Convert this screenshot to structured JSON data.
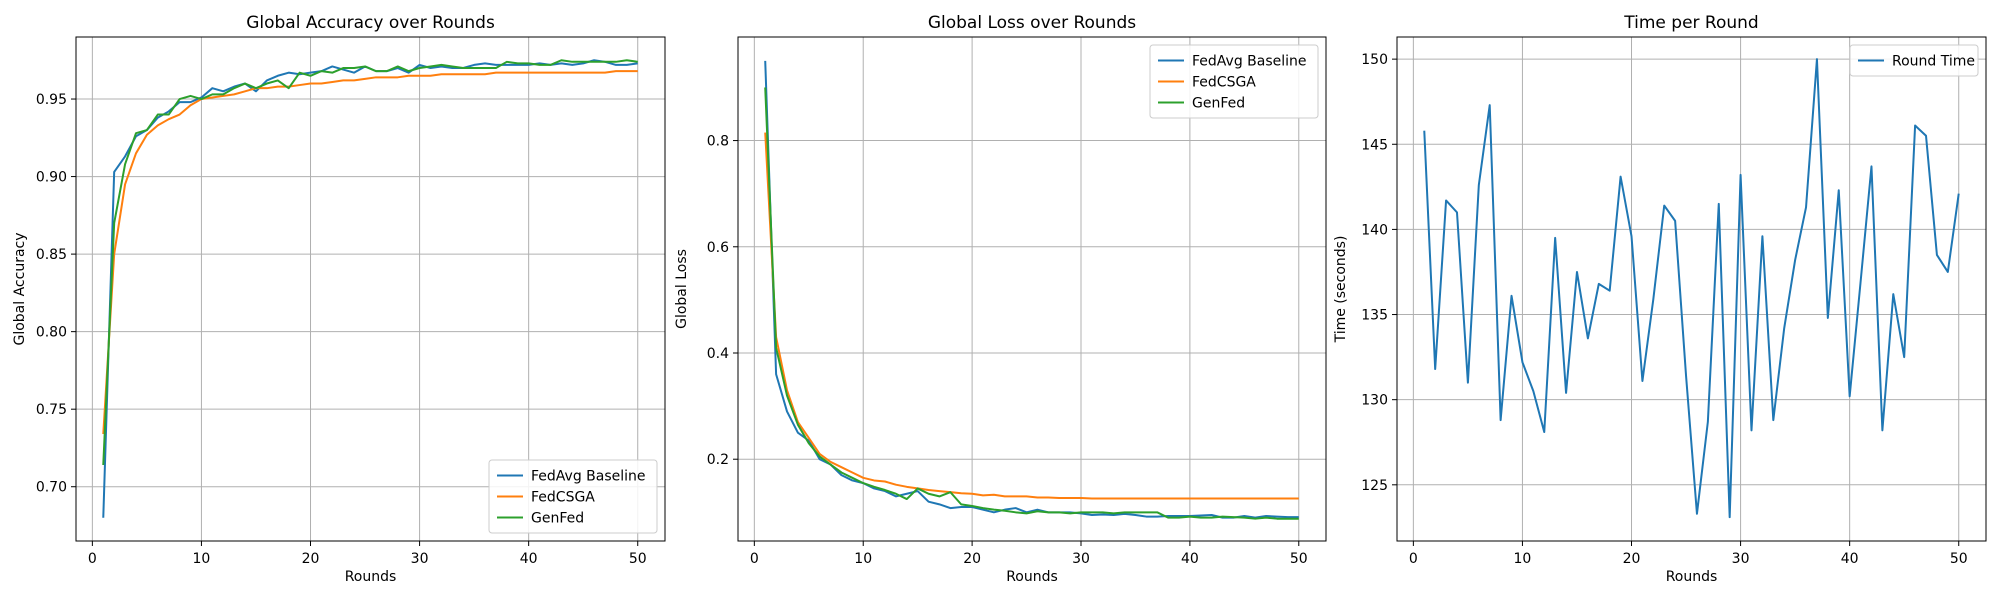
{
  "chart_data": [
    {
      "type": "line",
      "title": "Global Accuracy over Rounds",
      "xlabel": "Rounds",
      "ylabel": "Global Accuracy",
      "xlim": [
        -1.5,
        52.5
      ],
      "ylim": [
        0.665,
        0.99
      ],
      "xticks": [
        0,
        10,
        20,
        30,
        40,
        50
      ],
      "xtick_labels": [
        "0",
        "10",
        "20",
        "30",
        "40",
        "50"
      ],
      "yticks": [
        0.7,
        0.75,
        0.8,
        0.85,
        0.9,
        0.95
      ],
      "ytick_labels": [
        "0.70",
        "0.75",
        "0.80",
        "0.85",
        "0.90",
        "0.95"
      ],
      "grid": true,
      "legend_position": "lower-right",
      "x": [
        1,
        2,
        3,
        4,
        5,
        6,
        7,
        8,
        9,
        10,
        11,
        12,
        13,
        14,
        15,
        16,
        17,
        18,
        19,
        20,
        21,
        22,
        23,
        24,
        25,
        26,
        27,
        28,
        29,
        30,
        31,
        32,
        33,
        34,
        35,
        36,
        37,
        38,
        39,
        40,
        41,
        42,
        43,
        44,
        45,
        46,
        47,
        48,
        49,
        50
      ],
      "series": [
        {
          "name": "FedAvg Baseline",
          "color": "#1f77b4",
          "values": [
            0.68,
            0.903,
            0.913,
            0.926,
            0.93,
            0.938,
            0.942,
            0.948,
            0.948,
            0.951,
            0.957,
            0.955,
            0.958,
            0.96,
            0.955,
            0.962,
            0.965,
            0.967,
            0.966,
            0.967,
            0.968,
            0.971,
            0.969,
            0.967,
            0.971,
            0.968,
            0.968,
            0.97,
            0.967,
            0.972,
            0.97,
            0.971,
            0.97,
            0.97,
            0.972,
            0.973,
            0.972,
            0.972,
            0.972,
            0.972,
            0.973,
            0.972,
            0.973,
            0.972,
            0.973,
            0.975,
            0.974,
            0.972,
            0.972,
            0.973
          ]
        },
        {
          "name": "FedCSGA",
          "color": "#ff7f0e",
          "values": [
            0.734,
            0.85,
            0.895,
            0.915,
            0.927,
            0.933,
            0.937,
            0.94,
            0.946,
            0.95,
            0.951,
            0.952,
            0.953,
            0.955,
            0.957,
            0.957,
            0.958,
            0.958,
            0.959,
            0.96,
            0.96,
            0.961,
            0.962,
            0.962,
            0.963,
            0.964,
            0.964,
            0.964,
            0.965,
            0.965,
            0.965,
            0.966,
            0.966,
            0.966,
            0.966,
            0.966,
            0.967,
            0.967,
            0.967,
            0.967,
            0.967,
            0.967,
            0.967,
            0.967,
            0.967,
            0.967,
            0.967,
            0.968,
            0.968,
            0.968
          ]
        },
        {
          "name": "GenFed",
          "color": "#2ca02c",
          "values": [
            0.714,
            0.87,
            0.908,
            0.928,
            0.93,
            0.94,
            0.94,
            0.95,
            0.952,
            0.95,
            0.953,
            0.953,
            0.957,
            0.96,
            0.957,
            0.96,
            0.962,
            0.957,
            0.967,
            0.965,
            0.968,
            0.967,
            0.97,
            0.97,
            0.971,
            0.968,
            0.968,
            0.971,
            0.968,
            0.97,
            0.971,
            0.972,
            0.971,
            0.97,
            0.97,
            0.97,
            0.97,
            0.974,
            0.973,
            0.973,
            0.972,
            0.972,
            0.975,
            0.974,
            0.974,
            0.974,
            0.974,
            0.974,
            0.975,
            0.974
          ]
        }
      ]
    },
    {
      "type": "line",
      "title": "Global Loss over Rounds",
      "xlabel": "Rounds",
      "ylabel": "Global Loss",
      "xlim": [
        -1.5,
        52.5
      ],
      "ylim": [
        0.046,
        0.995
      ],
      "xticks": [
        0,
        10,
        20,
        30,
        40,
        50
      ],
      "xtick_labels": [
        "0",
        "10",
        "20",
        "30",
        "40",
        "50"
      ],
      "yticks": [
        0.2,
        0.4,
        0.6,
        0.8
      ],
      "ytick_labels": [
        "0.2",
        "0.4",
        "0.6",
        "0.8"
      ],
      "grid": true,
      "legend_position": "upper-right",
      "x": [
        1,
        2,
        3,
        4,
        5,
        6,
        7,
        8,
        9,
        10,
        11,
        12,
        13,
        14,
        15,
        16,
        17,
        18,
        19,
        20,
        21,
        22,
        23,
        24,
        25,
        26,
        27,
        28,
        29,
        30,
        31,
        32,
        33,
        34,
        35,
        36,
        37,
        38,
        39,
        40,
        41,
        42,
        43,
        44,
        45,
        46,
        47,
        48,
        49,
        50
      ],
      "series": [
        {
          "name": "FedAvg Baseline",
          "color": "#1f77b4",
          "values": [
            0.95,
            0.36,
            0.29,
            0.25,
            0.235,
            0.2,
            0.19,
            0.17,
            0.16,
            0.155,
            0.145,
            0.14,
            0.13,
            0.135,
            0.14,
            0.12,
            0.115,
            0.108,
            0.11,
            0.11,
            0.105,
            0.1,
            0.105,
            0.108,
            0.1,
            0.105,
            0.1,
            0.1,
            0.1,
            0.098,
            0.095,
            0.096,
            0.095,
            0.097,
            0.095,
            0.092,
            0.092,
            0.093,
            0.093,
            0.093,
            0.094,
            0.095,
            0.09,
            0.09,
            0.093,
            0.09,
            0.093,
            0.092,
            0.091,
            0.091
          ]
        },
        {
          "name": "FedCSGA",
          "color": "#ff7f0e",
          "values": [
            0.815,
            0.43,
            0.33,
            0.27,
            0.24,
            0.21,
            0.195,
            0.185,
            0.175,
            0.165,
            0.16,
            0.158,
            0.152,
            0.148,
            0.145,
            0.142,
            0.14,
            0.138,
            0.136,
            0.135,
            0.132,
            0.133,
            0.13,
            0.13,
            0.13,
            0.128,
            0.128,
            0.127,
            0.127,
            0.127,
            0.126,
            0.126,
            0.126,
            0.126,
            0.126,
            0.126,
            0.126,
            0.126,
            0.126,
            0.126,
            0.126,
            0.126,
            0.126,
            0.126,
            0.126,
            0.126,
            0.126,
            0.126,
            0.126,
            0.126
          ]
        },
        {
          "name": "GenFed",
          "color": "#2ca02c",
          "values": [
            0.9,
            0.41,
            0.32,
            0.265,
            0.23,
            0.205,
            0.19,
            0.175,
            0.165,
            0.155,
            0.148,
            0.142,
            0.135,
            0.125,
            0.145,
            0.135,
            0.13,
            0.138,
            0.115,
            0.112,
            0.108,
            0.105,
            0.103,
            0.1,
            0.098,
            0.102,
            0.1,
            0.1,
            0.098,
            0.1,
            0.1,
            0.1,
            0.098,
            0.1,
            0.1,
            0.1,
            0.1,
            0.09,
            0.09,
            0.092,
            0.09,
            0.09,
            0.092,
            0.091,
            0.09,
            0.088,
            0.09,
            0.088,
            0.088,
            0.088
          ]
        }
      ]
    },
    {
      "type": "line",
      "title": "Time per Round",
      "xlabel": "Rounds",
      "ylabel": "Time (seconds)",
      "xlim": [
        -1.5,
        52.5
      ],
      "ylim": [
        121.7,
        151.3
      ],
      "xticks": [
        0,
        10,
        20,
        30,
        40,
        50
      ],
      "xtick_labels": [
        "0",
        "10",
        "20",
        "30",
        "40",
        "50"
      ],
      "yticks": [
        125,
        130,
        135,
        140,
        145,
        150
      ],
      "ytick_labels": [
        "125",
        "130",
        "135",
        "140",
        "145",
        "150"
      ],
      "grid": true,
      "legend_position": "upper-right",
      "x": [
        1,
        2,
        3,
        4,
        5,
        6,
        7,
        8,
        9,
        10,
        11,
        12,
        13,
        14,
        15,
        16,
        17,
        18,
        19,
        20,
        21,
        22,
        23,
        24,
        25,
        26,
        27,
        28,
        29,
        30,
        31,
        32,
        33,
        34,
        35,
        36,
        37,
        38,
        39,
        40,
        41,
        42,
        43,
        44,
        45,
        46,
        47,
        48,
        49,
        50
      ],
      "series": [
        {
          "name": "Round Time",
          "color": "#1f77b4",
          "values": [
            145.8,
            131.8,
            141.7,
            141.0,
            131.0,
            142.6,
            147.3,
            128.8,
            136.1,
            132.2,
            130.5,
            128.1,
            139.5,
            130.4,
            137.5,
            133.6,
            136.8,
            136.4,
            143.1,
            139.6,
            131.1,
            135.9,
            141.4,
            140.5,
            131.4,
            123.3,
            128.7,
            141.5,
            123.1,
            143.2,
            128.2,
            139.6,
            128.8,
            134.2,
            138.2,
            141.3,
            150.0,
            134.8,
            142.3,
            130.2,
            136.9,
            143.7,
            128.2,
            136.2,
            132.5,
            146.1,
            145.5,
            138.5,
            137.5,
            142.1
          ]
        }
      ]
    }
  ]
}
